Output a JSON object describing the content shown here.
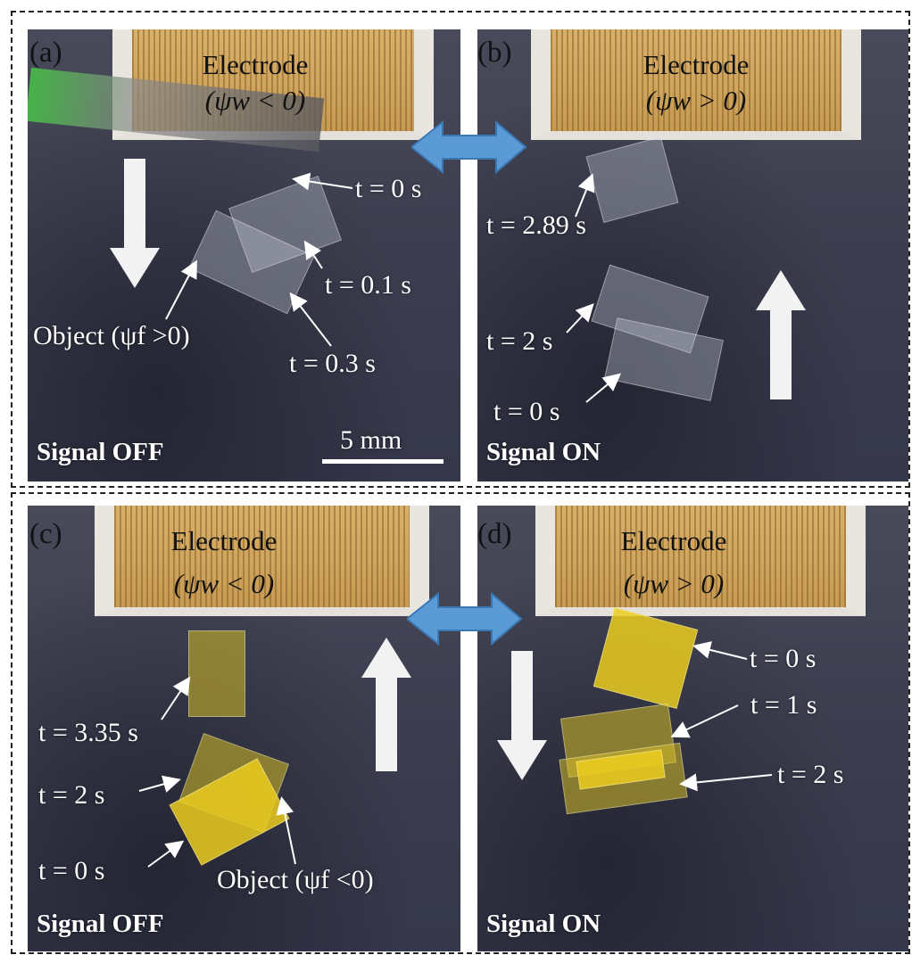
{
  "panels": {
    "a": {
      "tag": "(a)",
      "electrode": "Electrode",
      "potential": "(ψw < 0)",
      "signal": "Signal OFF",
      "labels": {
        "t0": "t = 0 s",
        "t01": "t = 0.1 s",
        "t03": "t = 0.3 s",
        "object": "Object (ψf >0)"
      },
      "scale": "5 mm"
    },
    "b": {
      "tag": "(b)",
      "electrode": "Electrode",
      "potential": "(ψw > 0)",
      "signal": "Signal ON",
      "labels": {
        "t289": "t = 2.89 s",
        "t2": "t = 2 s",
        "t0": "t = 0 s"
      }
    },
    "c": {
      "tag": "(c)",
      "electrode": "Electrode",
      "potential": "(ψw < 0)",
      "signal": "Signal OFF",
      "labels": {
        "t335": "t = 3.35 s",
        "t2": "t = 2 s",
        "t0": "t = 0 s",
        "object": "Object (ψf <0)"
      }
    },
    "d": {
      "tag": "(d)",
      "electrode": "Electrode",
      "potential": "(ψw > 0)",
      "signal": "Signal ON",
      "labels": {
        "t0": "t = 0 s",
        "t1": "t = 1 s",
        "t2": "t = 2 s"
      }
    }
  },
  "colors": {
    "double_arrow": "#5b9bd5",
    "film_yellow": "#e6c81e"
  }
}
